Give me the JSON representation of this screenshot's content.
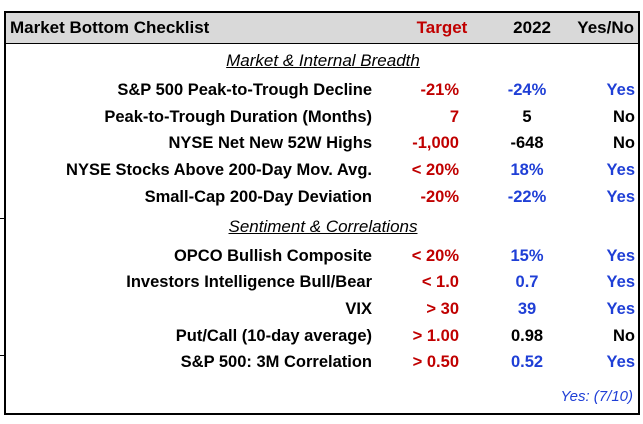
{
  "header": {
    "title": "Market Bottom Checklist",
    "columns": [
      "Target",
      "2022",
      "Yes/No"
    ]
  },
  "sections": [
    {
      "title": "Market & Internal Breadth",
      "rows": [
        {
          "label": "S&P 500 Peak-to-Trough Decline",
          "target": "-21%",
          "value": "-24%",
          "result": "Yes"
        },
        {
          "label": "Peak-to-Trough Duration (Months)",
          "target": "7",
          "value": "5",
          "result": "No"
        },
        {
          "label": "NYSE Net New 52W Highs",
          "target": "-1,000",
          "value": "-648",
          "result": "No"
        },
        {
          "label": "NYSE Stocks Above 200-Day Mov. Avg.",
          "target": "< 20%",
          "value": "18%",
          "result": "Yes"
        },
        {
          "label": "Small-Cap 200-Day Deviation",
          "target": "-20%",
          "value": "-22%",
          "result": "Yes"
        }
      ]
    },
    {
      "title": "Sentiment & Correlations",
      "rows": [
        {
          "label": "OPCO Bullish Composite",
          "target": "< 20%",
          "value": "15%",
          "result": "Yes"
        },
        {
          "label": "Investors Intelligence Bull/Bear",
          "target": "< 1.0",
          "value": "0.7",
          "result": "Yes"
        },
        {
          "label": "VIX",
          "target": "> 30",
          "value": "39",
          "result": "Yes"
        },
        {
          "label": "Put/Call (10-day average)",
          "target": "> 1.00",
          "value": "0.98",
          "result": "No"
        },
        {
          "label": "S&P 500: 3M Correlation",
          "target": "> 0.50",
          "value": "0.52",
          "result": "Yes"
        }
      ]
    }
  ],
  "footer": "Yes: (7/10)"
}
